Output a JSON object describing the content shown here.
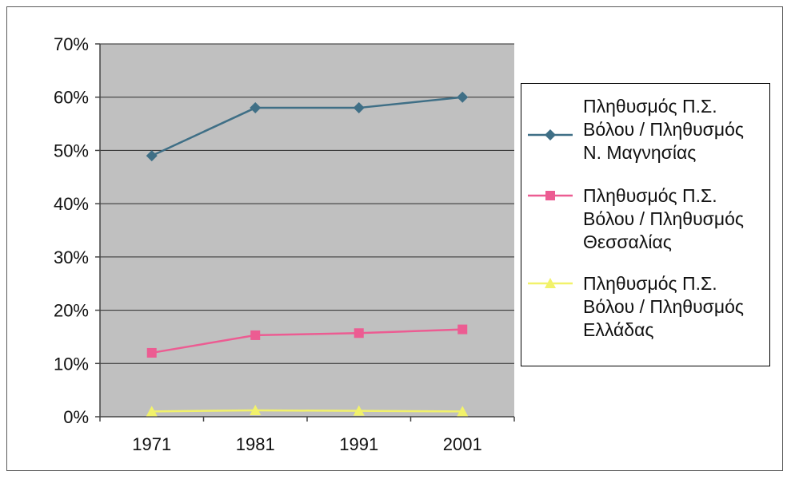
{
  "chart_data": {
    "type": "line",
    "categories": [
      "1971",
      "1981",
      "1991",
      "2001"
    ],
    "ylim": [
      0,
      70
    ],
    "y_ticks": [
      "0%",
      "10%",
      "20%",
      "30%",
      "40%",
      "50%",
      "60%",
      "70%"
    ],
    "grid": true,
    "plot_background": "#c0c0c0",
    "legend_position": "right",
    "series": [
      {
        "name": "Πληθυσμός Π.Σ.\nΒόλου / Πληθυσμός\nΝ. Μαγνησίας",
        "values": [
          49,
          58,
          58,
          60
        ],
        "color": "#3f6f86",
        "marker": "diamond"
      },
      {
        "name": "Πληθυσμός Π.Σ.\nΒόλου / Πληθυσμός\nΘεσσαλίας",
        "values": [
          12,
          15.3,
          15.7,
          16.4
        ],
        "color": "#ec5c92",
        "marker": "square"
      },
      {
        "name": "Πληθυσμός Π.Σ.\nΒόλου / Πληθυσμός\nΕλλάδας",
        "values": [
          1,
          1.2,
          1.1,
          1
        ],
        "color": "#f2f26a",
        "marker": "triangle"
      }
    ]
  }
}
